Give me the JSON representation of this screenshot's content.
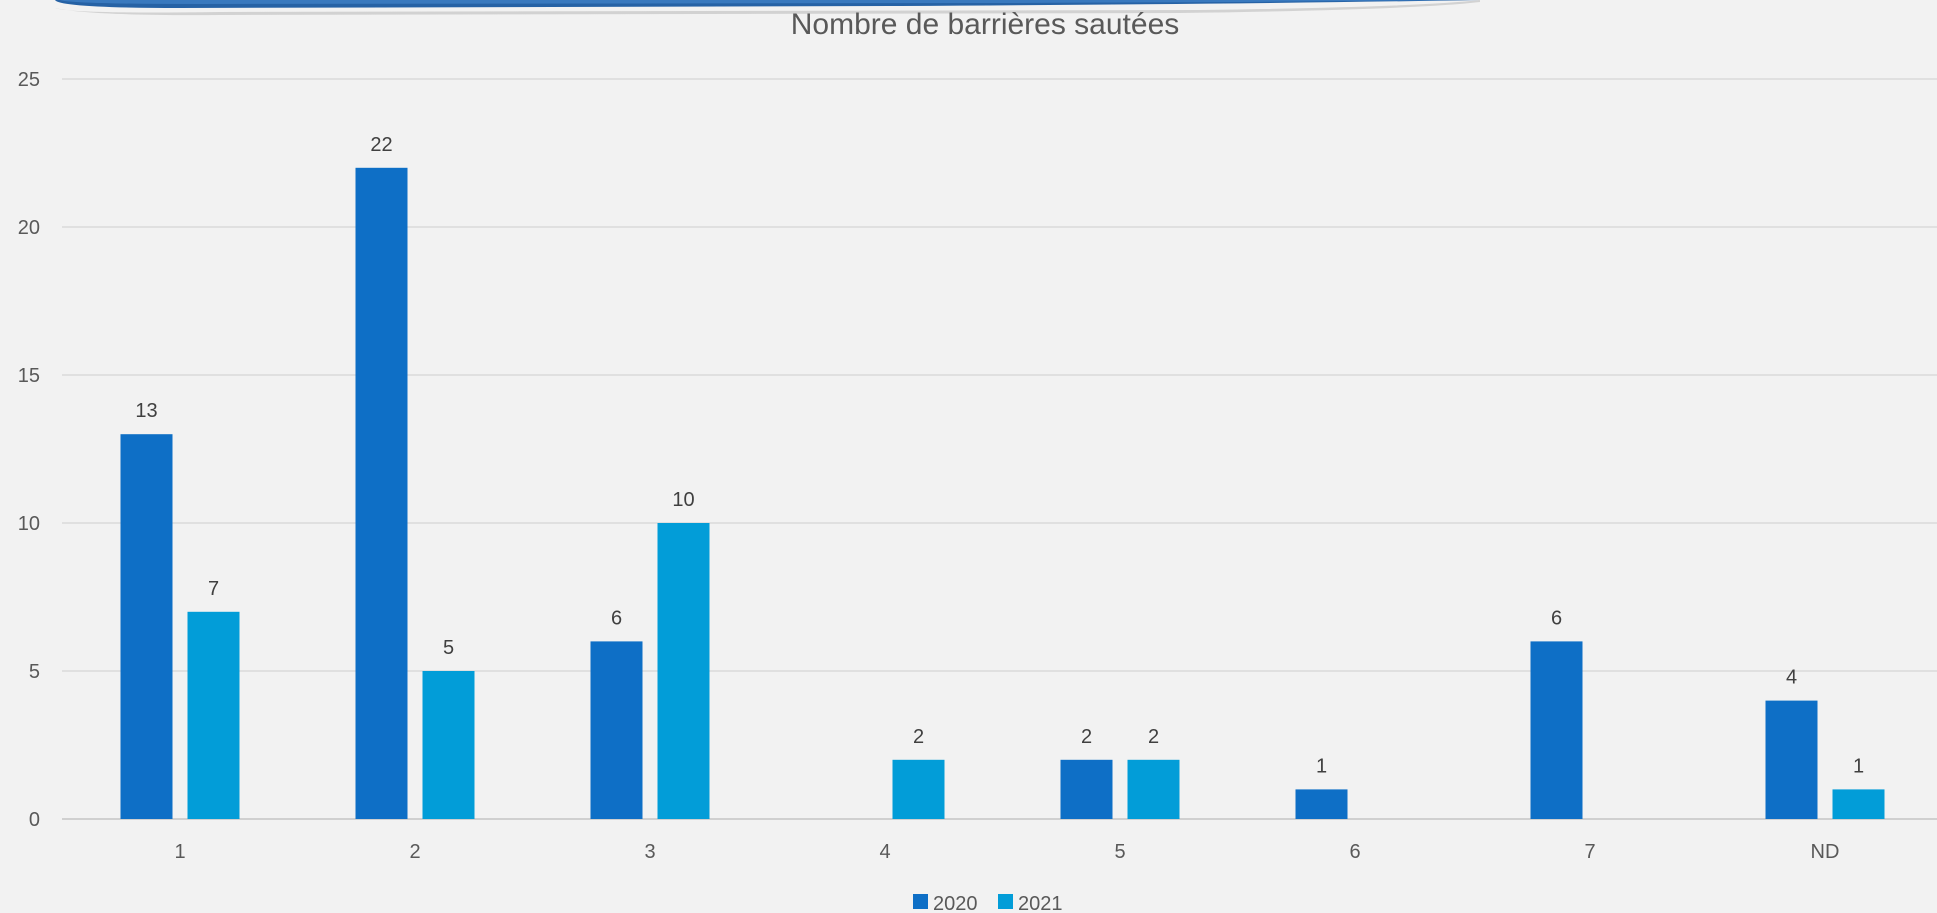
{
  "chart_data": {
    "type": "bar",
    "title": "Nombre de barrières sautées",
    "xlabel": "",
    "ylabel": "",
    "categories": [
      "1",
      "2",
      "3",
      "4",
      "5",
      "6",
      "7",
      "ND"
    ],
    "series": [
      {
        "name": "2020",
        "color": "#0e6fc6",
        "values": [
          13,
          22,
          6,
          null,
          2,
          1,
          6,
          4
        ]
      },
      {
        "name": "2021",
        "color": "#029dd8",
        "values": [
          7,
          5,
          10,
          2,
          2,
          null,
          null,
          1
        ]
      }
    ],
    "ylim": [
      0,
      25
    ],
    "yticks": [
      0,
      5,
      10,
      15,
      20,
      25
    ],
    "grid": true,
    "legend_position": "bottom"
  }
}
